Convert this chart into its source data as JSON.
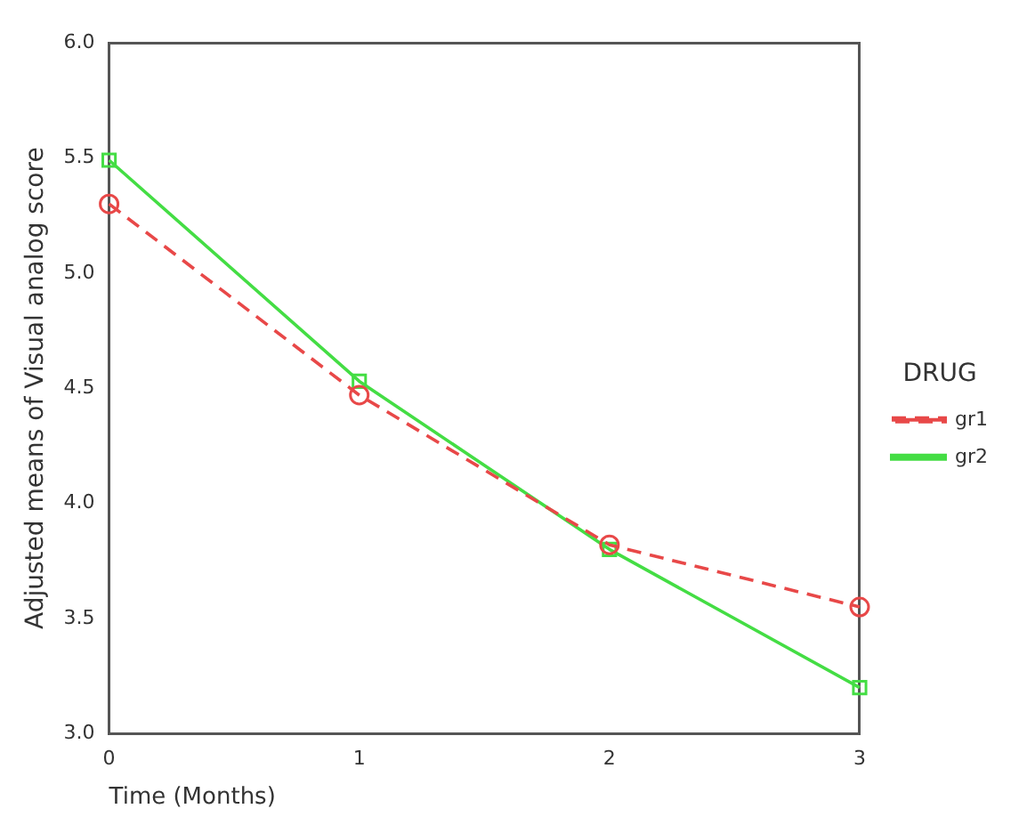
{
  "chart_data": {
    "type": "line",
    "xlabel": "Time (Months)",
    "ylabel": "Adjusted means of Visual analog score",
    "legend_title": "DRUG",
    "x": [
      0,
      1,
      2,
      3
    ],
    "series": [
      {
        "name": "gr1",
        "color": "#e84848",
        "values": [
          5.3,
          4.47,
          3.82,
          3.55
        ],
        "marker": "circle",
        "line_style": "dashed"
      },
      {
        "name": "gr2",
        "color": "#44dd44",
        "values": [
          5.49,
          4.53,
          3.8,
          3.2
        ],
        "marker": "square",
        "line_style": "solid"
      }
    ],
    "xlim": [
      0,
      3
    ],
    "xticks": [
      0,
      1,
      2,
      3
    ],
    "ylim": [
      3.0,
      6.0
    ],
    "yticks": [
      {
        "value": 3,
        "label": "3.0"
      },
      {
        "value": 3.5,
        "label": "3.5"
      },
      {
        "value": 4,
        "label": "4.0"
      },
      {
        "value": 4.5,
        "label": "4.5"
      },
      {
        "value": 5,
        "label": "5.0"
      },
      {
        "value": 5.5,
        "label": "5.5"
      },
      {
        "value": 6,
        "label": "6.0"
      }
    ],
    "grid": false,
    "legend": "right"
  }
}
